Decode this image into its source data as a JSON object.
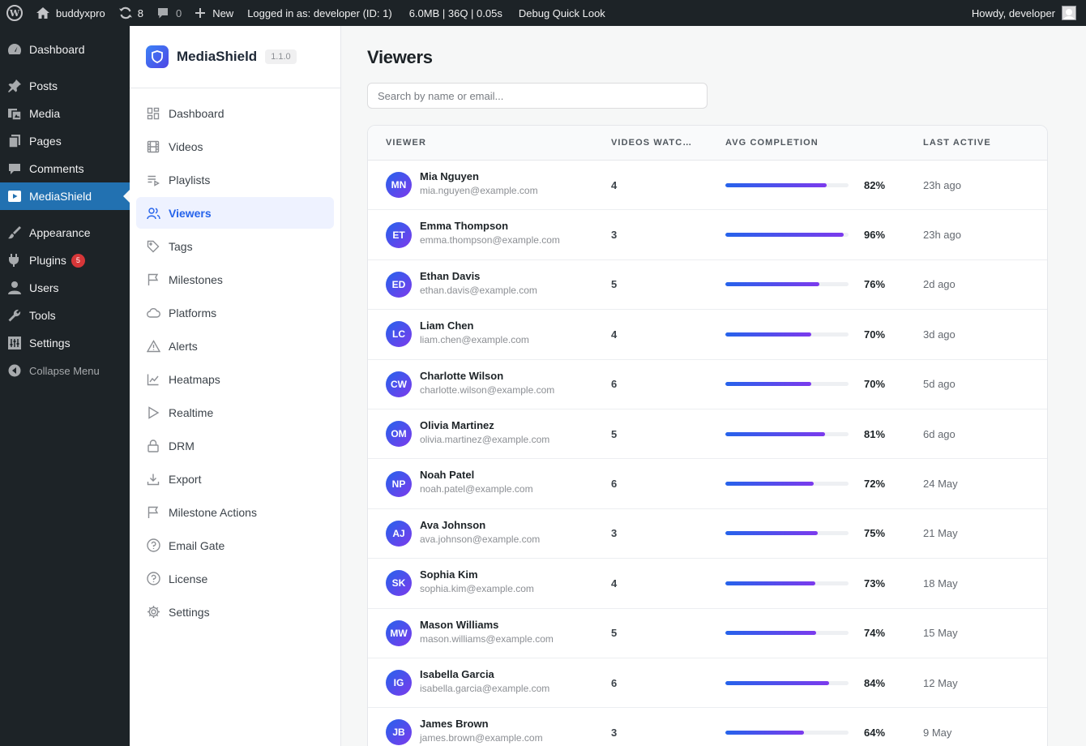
{
  "adminbar": {
    "site_name": "buddyxpro",
    "updates_count": "8",
    "comments_count": "0",
    "new_label": "New",
    "logged_in": "Logged in as: developer (ID: 1)",
    "stats": "6.0MB | 36Q | 0.05s",
    "debug": "Debug Quick Look",
    "howdy": "Howdy, developer"
  },
  "wpmenu": {
    "dashboard": "Dashboard",
    "posts": "Posts",
    "media": "Media",
    "pages": "Pages",
    "comments": "Comments",
    "mediashield": "MediaShield",
    "appearance": "Appearance",
    "plugins": "Plugins",
    "plugins_badge": "5",
    "users": "Users",
    "tools": "Tools",
    "settings": "Settings",
    "collapse": "Collapse Menu"
  },
  "plugin": {
    "name": "MediaShield",
    "version": "1.1.0",
    "nav": [
      {
        "label": "Dashboard",
        "icon": "grid-icon"
      },
      {
        "label": "Videos",
        "icon": "film-icon"
      },
      {
        "label": "Playlists",
        "icon": "playlist-icon"
      },
      {
        "label": "Viewers",
        "icon": "users-icon"
      },
      {
        "label": "Tags",
        "icon": "tag-icon"
      },
      {
        "label": "Milestones",
        "icon": "flag-icon"
      },
      {
        "label": "Platforms",
        "icon": "cloud-icon"
      },
      {
        "label": "Alerts",
        "icon": "alert-icon"
      },
      {
        "label": "Heatmaps",
        "icon": "chart-icon"
      },
      {
        "label": "Realtime",
        "icon": "play-icon"
      },
      {
        "label": "DRM",
        "icon": "lock-icon"
      },
      {
        "label": "Export",
        "icon": "download-icon"
      },
      {
        "label": "Milestone Actions",
        "icon": "flag-icon"
      },
      {
        "label": "Email Gate",
        "icon": "help-icon"
      },
      {
        "label": "License",
        "icon": "help-icon"
      },
      {
        "label": "Settings",
        "icon": "gear-icon"
      }
    ]
  },
  "main": {
    "title": "Viewers",
    "search_placeholder": "Search by name or email...",
    "columns": {
      "viewer": "Viewer",
      "videos": "Videos Watched",
      "completion": "Avg Completion",
      "last_active": "Last Active"
    },
    "rows": [
      {
        "initials": "MN",
        "name": "Mia Nguyen",
        "email": "mia.nguyen@example.com",
        "videos": "4",
        "completion": 82,
        "completion_label": "82%",
        "last_active": "23h ago"
      },
      {
        "initials": "ET",
        "name": "Emma Thompson",
        "email": "emma.thompson@example.com",
        "videos": "3",
        "completion": 96,
        "completion_label": "96%",
        "last_active": "23h ago"
      },
      {
        "initials": "ED",
        "name": "Ethan Davis",
        "email": "ethan.davis@example.com",
        "videos": "5",
        "completion": 76,
        "completion_label": "76%",
        "last_active": "2d ago"
      },
      {
        "initials": "LC",
        "name": "Liam Chen",
        "email": "liam.chen@example.com",
        "videos": "4",
        "completion": 70,
        "completion_label": "70%",
        "last_active": "3d ago"
      },
      {
        "initials": "CW",
        "name": "Charlotte Wilson",
        "email": "charlotte.wilson@example.com",
        "videos": "6",
        "completion": 70,
        "completion_label": "70%",
        "last_active": "5d ago"
      },
      {
        "initials": "OM",
        "name": "Olivia Martinez",
        "email": "olivia.martinez@example.com",
        "videos": "5",
        "completion": 81,
        "completion_label": "81%",
        "last_active": "6d ago"
      },
      {
        "initials": "NP",
        "name": "Noah Patel",
        "email": "noah.patel@example.com",
        "videos": "6",
        "completion": 72,
        "completion_label": "72%",
        "last_active": "24 May"
      },
      {
        "initials": "AJ",
        "name": "Ava Johnson",
        "email": "ava.johnson@example.com",
        "videos": "3",
        "completion": 75,
        "completion_label": "75%",
        "last_active": "21 May"
      },
      {
        "initials": "SK",
        "name": "Sophia Kim",
        "email": "sophia.kim@example.com",
        "videos": "4",
        "completion": 73,
        "completion_label": "73%",
        "last_active": "18 May"
      },
      {
        "initials": "MW",
        "name": "Mason Williams",
        "email": "mason.williams@example.com",
        "videos": "5",
        "completion": 74,
        "completion_label": "74%",
        "last_active": "15 May"
      },
      {
        "initials": "IG",
        "name": "Isabella Garcia",
        "email": "isabella.garcia@example.com",
        "videos": "6",
        "completion": 84,
        "completion_label": "84%",
        "last_active": "12 May"
      },
      {
        "initials": "JB",
        "name": "James Brown",
        "email": "james.brown@example.com",
        "videos": "3",
        "completion": 64,
        "completion_label": "64%",
        "last_active": "9 May"
      }
    ]
  },
  "colors": {
    "wp_dark": "#1d2327",
    "wp_blue": "#2271b1",
    "accent": "#2563eb",
    "accent2": "#7c3aed"
  }
}
